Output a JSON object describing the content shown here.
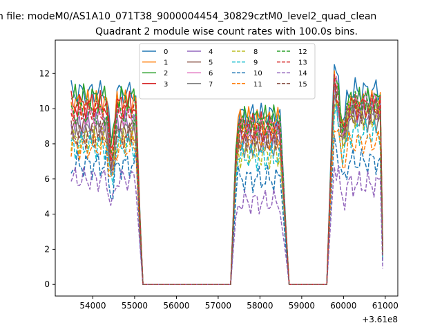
{
  "chart_data": {
    "type": "line",
    "suptitle": "n file: modeM0/AS1A10_071T38_9000004454_30829cztM0_level2_quad_clean",
    "title": "Quadrant 2 module wise count rates with 100.0s bins.",
    "xlabel": "",
    "ylabel": "",
    "x_offset_label": "+3.61e8",
    "xlim": [
      53100,
      61300
    ],
    "ylim": [
      -0.66,
      13.9
    ],
    "xticks": [
      54000,
      55000,
      56000,
      57000,
      58000,
      59000,
      60000,
      61000
    ],
    "xtick_labels": [
      "54000",
      "55000",
      "56000",
      "57000",
      "58000",
      "59000",
      "60000",
      "61000"
    ],
    "yticks": [
      0,
      2,
      4,
      6,
      8,
      10,
      12
    ],
    "ytick_labels": [
      "0",
      "2",
      "4",
      "6",
      "8",
      "10",
      "12"
    ],
    "grid": false,
    "legend_position": "top-center",
    "legend_columns": 4,
    "colors": [
      "#1f77b4",
      "#ff7f0e",
      "#2ca02c",
      "#d62728",
      "#9467bd",
      "#8c564b",
      "#e377c2",
      "#7f7f7f",
      "#bcbd22",
      "#17becf"
    ],
    "series": [
      {
        "name": "0",
        "style": "solid"
      },
      {
        "name": "1",
        "style": "solid"
      },
      {
        "name": "2",
        "style": "solid"
      },
      {
        "name": "3",
        "style": "solid"
      },
      {
        "name": "4",
        "style": "solid"
      },
      {
        "name": "5",
        "style": "solid"
      },
      {
        "name": "6",
        "style": "solid"
      },
      {
        "name": "7",
        "style": "solid"
      },
      {
        "name": "8",
        "style": "dashed"
      },
      {
        "name": "9",
        "style": "dashed"
      },
      {
        "name": "10",
        "style": "dashed"
      },
      {
        "name": "11",
        "style": "dashed"
      },
      {
        "name": "12",
        "style": "dashed"
      },
      {
        "name": "13",
        "style": "dashed"
      },
      {
        "name": "14",
        "style": "dashed"
      },
      {
        "name": "15",
        "style": "dashed"
      }
    ],
    "segments": [
      {
        "x_start": 53480,
        "x_end": 55030,
        "levels": [
          10.9,
          10.3,
          10.6,
          10.2,
          9.1,
          8.8,
          9.5,
          8.7,
          8.2,
          7.9,
          6.8,
          7.8,
          9.7,
          9.9,
          6.0,
          8.5
        ],
        "dip_at": 54450,
        "dip_depth": 0.3
      },
      {
        "x_start": 57480,
        "x_end": 58520,
        "levels": [
          9.6,
          9.3,
          9.4,
          9.0,
          8.4,
          8.1,
          8.9,
          7.9,
          7.4,
          7.3,
          6.0,
          8.4,
          9.0,
          8.7,
          4.7,
          8.4
        ],
        "dip_at": null,
        "dip_depth": 0
      },
      {
        "x_start": 59780,
        "x_end": 60880,
        "levels": [
          11.0,
          10.2,
          10.4,
          10.1,
          9.8,
          9.6,
          10.3,
          9.4,
          9.6,
          8.6,
          7.0,
          8.1,
          10.4,
          10.1,
          5.7,
          9.9
        ],
        "dip_at": 60000,
        "dip_depth": 0.18
      }
    ],
    "zero_ranges": [
      [
        55200,
        57300
      ],
      [
        58700,
        59600
      ]
    ],
    "end_values": [
      2.1,
      1.9,
      1.6,
      2.0,
      1.8,
      1.7,
      1.9,
      1.6,
      1.5,
      1.4,
      1.2,
      1.7,
      1.8,
      1.9,
      0.9,
      1.7
    ]
  }
}
